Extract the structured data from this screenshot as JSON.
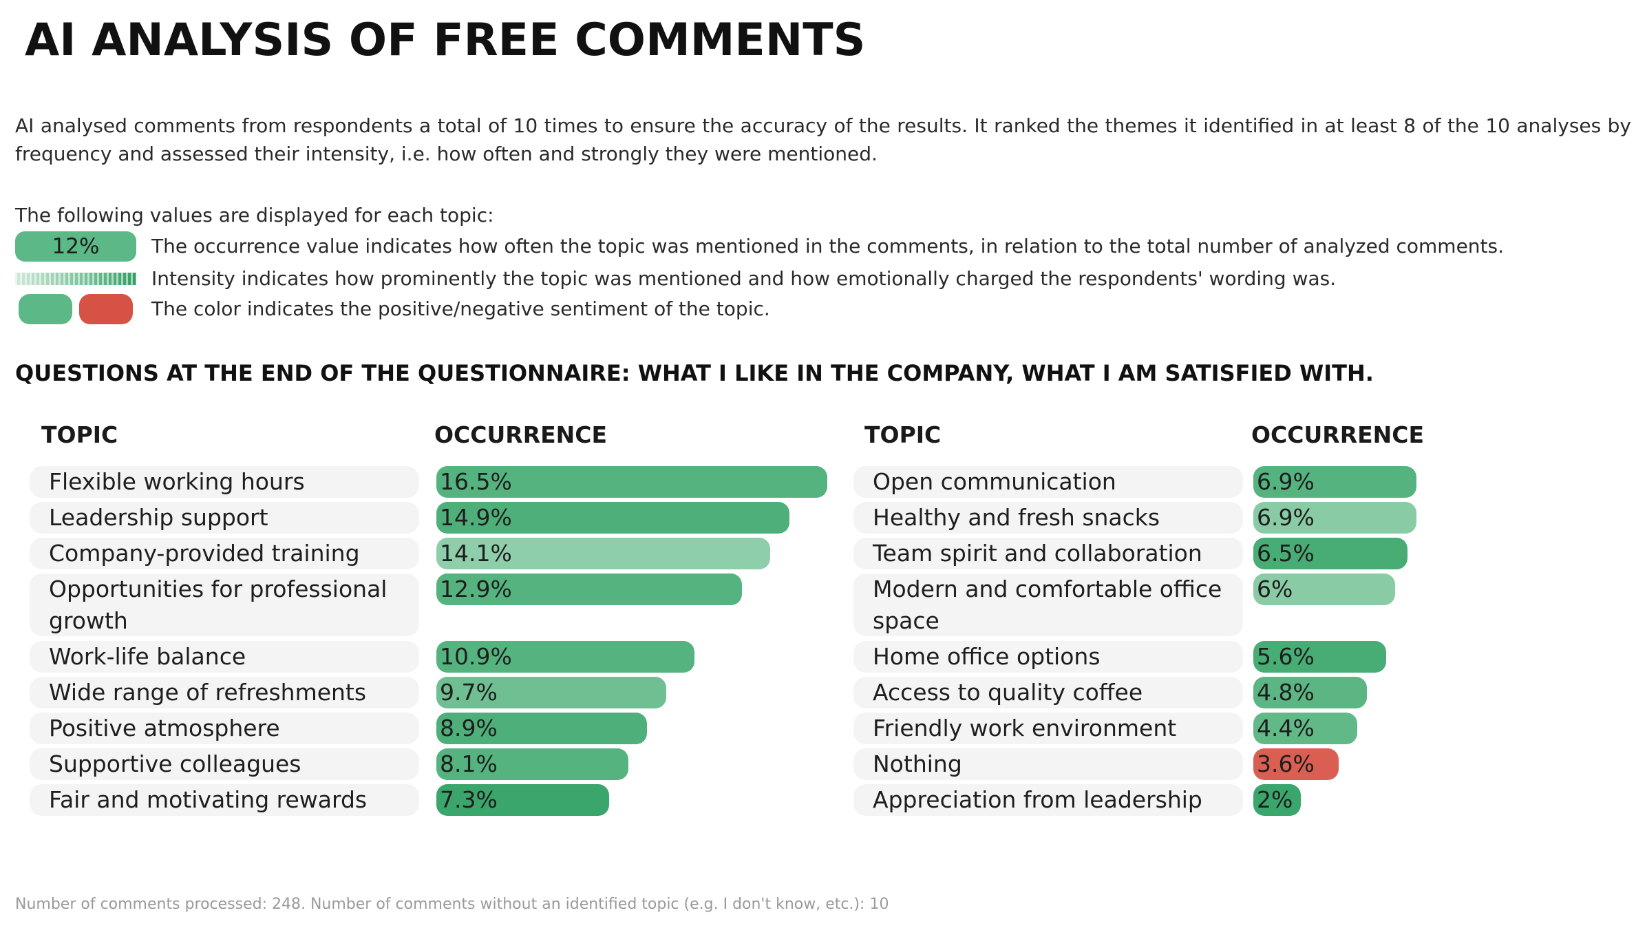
{
  "title": "AI ANALYSIS OF FREE COMMENTS",
  "intro": "AI analysed comments from respondents a total of 10 times to ensure the accuracy of the results. It ranked the themes it identified in at least 8 of the 10 analyses by frequency and assessed their intensity, i.e. how often and strongly they were mentioned.",
  "legend": {
    "intro": "The following values are displayed for each topic:",
    "sample_value": "12%",
    "occurrence_text": "The occurrence value indicates how often the topic was mentioned in the comments, in relation to the total number of analyzed comments.",
    "intensity_text": "Intensity indicates how prominently the topic was mentioned and how emotionally charged the respondents' wording was.",
    "sentiment_text": "The color indicates the positive/negative sentiment of the topic.",
    "positive_color": "#5cb886",
    "negative_color": "#d65244"
  },
  "section_title": "QUESTIONS AT THE END OF THE QUESTIONNAIRE: WHAT I LIKE IN THE COMPANY, WHAT I AM SATISFIED WITH.",
  "columns": {
    "topic": "TOPIC",
    "occurrence": "OCCURRENCE"
  },
  "chart_data": {
    "type": "bar",
    "orientation": "horizontal",
    "unit": "%",
    "panels": [
      {
        "topics": [
          {
            "label": "Flexible working hours",
            "value": 16.5,
            "display": "16.5%",
            "sentiment": "positive",
            "intensity": 0.75
          },
          {
            "label": "Leadership support",
            "value": 14.9,
            "display": "14.9%",
            "sentiment": "positive",
            "intensity": 0.8
          },
          {
            "label": "Company-provided training",
            "value": 14.1,
            "display": "14.1%",
            "sentiment": "positive",
            "intensity": 0.3
          },
          {
            "label": "Opportunities for professional growth",
            "value": 12.9,
            "display": "12.9%",
            "sentiment": "positive",
            "intensity": 0.75
          },
          {
            "label": "Work-life balance",
            "value": 10.9,
            "display": "10.9%",
            "sentiment": "positive",
            "intensity": 0.75
          },
          {
            "label": "Wide range of refreshments",
            "value": 9.7,
            "display": "9.7%",
            "sentiment": "positive",
            "intensity": 0.55
          },
          {
            "label": "Positive atmosphere",
            "value": 8.9,
            "display": "8.9%",
            "sentiment": "positive",
            "intensity": 0.8
          },
          {
            "label": "Supportive colleagues",
            "value": 8.1,
            "display": "8.1%",
            "sentiment": "positive",
            "intensity": 0.75
          },
          {
            "label": "Fair and motivating rewards",
            "value": 7.3,
            "display": "7.3%",
            "sentiment": "positive",
            "intensity": 0.95
          }
        ]
      },
      {
        "topics": [
          {
            "label": "Open communication",
            "value": 6.9,
            "display": "6.9%",
            "sentiment": "positive",
            "intensity": 0.75
          },
          {
            "label": "Healthy and fresh snacks",
            "value": 6.9,
            "display": "6.9%",
            "sentiment": "positive",
            "intensity": 0.35
          },
          {
            "label": "Team spirit and collaboration",
            "value": 6.5,
            "display": "6.5%",
            "sentiment": "positive",
            "intensity": 0.85
          },
          {
            "label": "Modern and comfortable office space",
            "value": 6.0,
            "display": "6%",
            "sentiment": "positive",
            "intensity": 0.35
          },
          {
            "label": "Home office options",
            "value": 5.6,
            "display": "5.6%",
            "sentiment": "positive",
            "intensity": 0.85
          },
          {
            "label": "Access to quality coffee",
            "value": 4.8,
            "display": "4.8%",
            "sentiment": "positive",
            "intensity": 0.7
          },
          {
            "label": "Friendly work environment",
            "value": 4.4,
            "display": "4.4%",
            "sentiment": "positive",
            "intensity": 0.65
          },
          {
            "label": "Nothing",
            "value": 3.6,
            "display": "3.6%",
            "sentiment": "negative",
            "intensity": 0.85
          },
          {
            "label": "Appreciation from leadership",
            "value": 2.0,
            "display": "2%",
            "sentiment": "positive",
            "intensity": 0.95
          }
        ]
      }
    ]
  },
  "footnote": "Number of comments processed: 248. Number of comments without an identified topic (e.g. I don't know, etc.): 10"
}
